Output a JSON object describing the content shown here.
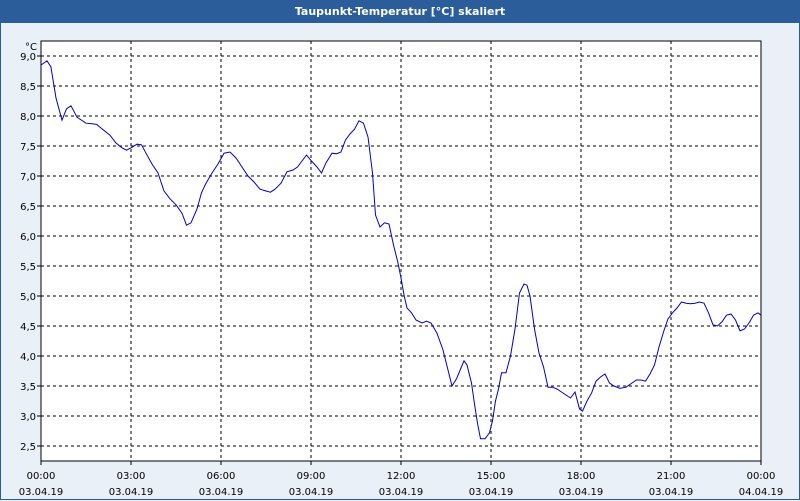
{
  "window": {
    "title": "Taupunkt-Temperatur [°C] skaliert"
  },
  "colors": {
    "titlebar": "#2a5d9a",
    "line": "#0000cc",
    "grid": "#000000",
    "plot_bg": "#ffffff"
  },
  "chart_data": {
    "type": "line",
    "title": "Taupunkt-Temperatur [°C] skaliert",
    "ylabel": "°C",
    "xlabel": "",
    "ylim": [
      2.25,
      9.25
    ],
    "xlim": [
      0,
      24
    ],
    "grid": true,
    "yticks": [
      "2,5",
      "3,0",
      "3,5",
      "4,0",
      "4,5",
      "5,0",
      "5,5",
      "6,0",
      "6,5",
      "7,0",
      "7,5",
      "8,0",
      "8,5",
      "9,0"
    ],
    "ytick_values": [
      2.5,
      3.0,
      3.5,
      4.0,
      4.5,
      5.0,
      5.5,
      6.0,
      6.5,
      7.0,
      7.5,
      8.0,
      8.5,
      9.0
    ],
    "xticks": [
      {
        "time": "00:00",
        "date": "03.04.19"
      },
      {
        "time": "03:00",
        "date": "03.04.19"
      },
      {
        "time": "06:00",
        "date": "03.04.19"
      },
      {
        "time": "09:00",
        "date": "03.04.19"
      },
      {
        "time": "12:00",
        "date": "03.04.19"
      },
      {
        "time": "15:00",
        "date": "03.04.19"
      },
      {
        "time": "18:00",
        "date": "03.04.19"
      },
      {
        "time": "21:00",
        "date": "03.04.19"
      },
      {
        "time": "00:00",
        "date": "04.04.19"
      }
    ],
    "series": [
      {
        "points": [
          [
            0.0,
            8.85
          ],
          [
            0.2,
            8.92
          ],
          [
            0.33,
            8.82
          ],
          [
            0.5,
            8.3
          ],
          [
            0.7,
            7.93
          ],
          [
            0.85,
            8.12
          ],
          [
            1.0,
            8.17
          ],
          [
            1.2,
            7.98
          ],
          [
            1.5,
            7.88
          ],
          [
            1.7,
            7.87
          ],
          [
            1.85,
            7.86
          ],
          [
            2.0,
            7.8
          ],
          [
            2.3,
            7.68
          ],
          [
            2.5,
            7.55
          ],
          [
            2.7,
            7.47
          ],
          [
            2.85,
            7.43
          ],
          [
            3.0,
            7.47
          ],
          [
            3.2,
            7.53
          ],
          [
            3.35,
            7.52
          ],
          [
            3.5,
            7.38
          ],
          [
            3.7,
            7.2
          ],
          [
            3.9,
            7.05
          ],
          [
            4.1,
            6.75
          ],
          [
            4.3,
            6.62
          ],
          [
            4.5,
            6.52
          ],
          [
            4.7,
            6.38
          ],
          [
            4.85,
            6.18
          ],
          [
            5.0,
            6.22
          ],
          [
            5.2,
            6.45
          ],
          [
            5.35,
            6.72
          ],
          [
            5.5,
            6.88
          ],
          [
            5.7,
            7.05
          ],
          [
            5.9,
            7.2
          ],
          [
            6.1,
            7.38
          ],
          [
            6.3,
            7.4
          ],
          [
            6.5,
            7.3
          ],
          [
            6.7,
            7.15
          ],
          [
            6.9,
            7.0
          ],
          [
            7.1,
            6.9
          ],
          [
            7.3,
            6.78
          ],
          [
            7.5,
            6.75
          ],
          [
            7.65,
            6.73
          ],
          [
            7.8,
            6.78
          ],
          [
            8.0,
            6.88
          ],
          [
            8.2,
            7.07
          ],
          [
            8.4,
            7.1
          ],
          [
            8.55,
            7.15
          ],
          [
            8.7,
            7.25
          ],
          [
            8.85,
            7.35
          ],
          [
            9.0,
            7.26
          ],
          [
            9.2,
            7.15
          ],
          [
            9.35,
            7.05
          ],
          [
            9.5,
            7.22
          ],
          [
            9.7,
            7.38
          ],
          [
            9.85,
            7.37
          ],
          [
            10.0,
            7.4
          ],
          [
            10.15,
            7.6
          ],
          [
            10.3,
            7.7
          ],
          [
            10.45,
            7.78
          ],
          [
            10.6,
            7.92
          ],
          [
            10.75,
            7.88
          ],
          [
            10.9,
            7.65
          ],
          [
            11.05,
            7.05
          ],
          [
            11.15,
            6.35
          ],
          [
            11.3,
            6.15
          ],
          [
            11.45,
            6.22
          ],
          [
            11.6,
            6.2
          ],
          [
            11.75,
            5.85
          ],
          [
            11.9,
            5.55
          ],
          [
            12.0,
            5.3
          ],
          [
            12.1,
            5.02
          ],
          [
            12.2,
            4.8
          ],
          [
            12.35,
            4.72
          ],
          [
            12.5,
            4.6
          ],
          [
            12.7,
            4.55
          ],
          [
            12.85,
            4.58
          ],
          [
            13.0,
            4.55
          ],
          [
            13.2,
            4.38
          ],
          [
            13.4,
            4.1
          ],
          [
            13.55,
            3.8
          ],
          [
            13.7,
            3.5
          ],
          [
            13.85,
            3.62
          ],
          [
            14.0,
            3.8
          ],
          [
            14.1,
            3.92
          ],
          [
            14.2,
            3.85
          ],
          [
            14.35,
            3.55
          ],
          [
            14.45,
            3.2
          ],
          [
            14.55,
            2.88
          ],
          [
            14.65,
            2.62
          ],
          [
            14.8,
            2.62
          ],
          [
            14.95,
            2.72
          ],
          [
            15.05,
            2.92
          ],
          [
            15.15,
            3.25
          ],
          [
            15.25,
            3.45
          ],
          [
            15.35,
            3.72
          ],
          [
            15.5,
            3.72
          ],
          [
            15.65,
            4.0
          ],
          [
            15.8,
            4.45
          ],
          [
            15.95,
            5.05
          ],
          [
            16.1,
            5.2
          ],
          [
            16.2,
            5.18
          ],
          [
            16.3,
            5.0
          ],
          [
            16.45,
            4.45
          ],
          [
            16.6,
            4.05
          ],
          [
            16.75,
            3.82
          ],
          [
            16.9,
            3.48
          ],
          [
            17.05,
            3.48
          ],
          [
            17.2,
            3.45
          ],
          [
            17.35,
            3.4
          ],
          [
            17.5,
            3.35
          ],
          [
            17.65,
            3.3
          ],
          [
            17.8,
            3.4
          ],
          [
            17.95,
            3.12
          ],
          [
            18.05,
            3.08
          ],
          [
            18.2,
            3.25
          ],
          [
            18.35,
            3.38
          ],
          [
            18.5,
            3.58
          ],
          [
            18.65,
            3.65
          ],
          [
            18.8,
            3.7
          ],
          [
            18.95,
            3.55
          ],
          [
            19.1,
            3.5
          ],
          [
            19.3,
            3.46
          ],
          [
            19.5,
            3.48
          ],
          [
            19.7,
            3.55
          ],
          [
            19.85,
            3.6
          ],
          [
            20.0,
            3.6
          ],
          [
            20.15,
            3.58
          ],
          [
            20.3,
            3.7
          ],
          [
            20.45,
            3.85
          ],
          [
            20.6,
            4.15
          ],
          [
            20.75,
            4.4
          ],
          [
            20.9,
            4.62
          ],
          [
            21.05,
            4.72
          ],
          [
            21.2,
            4.8
          ],
          [
            21.35,
            4.9
          ],
          [
            21.5,
            4.88
          ],
          [
            21.65,
            4.87
          ],
          [
            21.8,
            4.88
          ],
          [
            21.95,
            4.9
          ],
          [
            22.1,
            4.88
          ],
          [
            22.25,
            4.72
          ],
          [
            22.4,
            4.52
          ],
          [
            22.55,
            4.5
          ],
          [
            22.7,
            4.57
          ],
          [
            22.85,
            4.68
          ],
          [
            23.0,
            4.7
          ],
          [
            23.15,
            4.6
          ],
          [
            23.3,
            4.42
          ],
          [
            23.45,
            4.45
          ],
          [
            23.6,
            4.55
          ],
          [
            23.75,
            4.68
          ],
          [
            23.9,
            4.72
          ],
          [
            24.0,
            4.68
          ]
        ]
      }
    ]
  }
}
